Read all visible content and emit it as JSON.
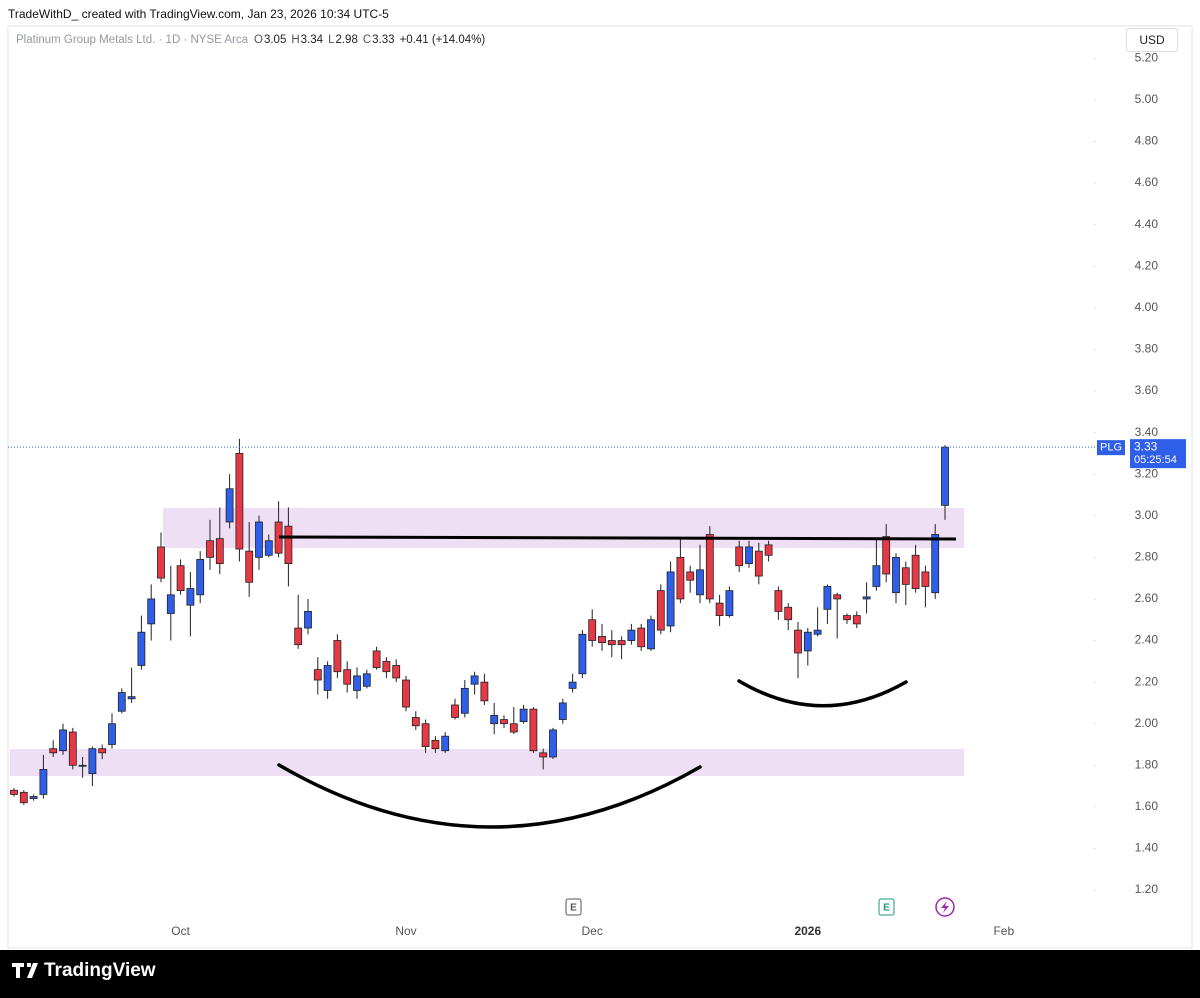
{
  "header": "TradeWithD_ created with TradingView.com, Jan 23, 2026 10:34 UTC-5",
  "footer": "TradingView",
  "chart_data": {
    "type": "candlestick",
    "title": "Platinum Group Metals Ltd. · 1D · NYSE Arca",
    "legend_keys": [
      "O",
      "H",
      "L",
      "C"
    ],
    "change_label": "+0.41 (+14.04%)",
    "currency": "USD",
    "countdown": "05:25:54",
    "events": [
      "E",
      "E"
    ],
    "up_color": "#2f5fe8",
    "down_color": "#e53946",
    "grid": false,
    "categories": [
      null,
      null,
      null,
      null,
      null,
      null,
      null,
      null,
      null,
      null,
      null,
      null,
      null,
      null,
      null,
      null,
      null,
      "Oct",
      null,
      null,
      null,
      null,
      null,
      null,
      null,
      null,
      null,
      null,
      null,
      null,
      null,
      null,
      null,
      null,
      null,
      null,
      null,
      null,
      null,
      null,
      "Nov",
      null,
      null,
      null,
      null,
      null,
      null,
      null,
      null,
      null,
      null,
      null,
      null,
      null,
      null,
      null,
      null,
      null,
      null,
      "Dec",
      null,
      null,
      null,
      null,
      null,
      null,
      null,
      null,
      null,
      null,
      null,
      null,
      null,
      null,
      null,
      null,
      null,
      null,
      null,
      null,
      null,
      "2026",
      null,
      null,
      null,
      null,
      null,
      null,
      null,
      null,
      null,
      null,
      null,
      null,
      null,
      null,
      null,
      null,
      null,
      null,
      null,
      "Feb"
    ],
    "series": [
      {
        "name": "PLG",
        "open": [
          1.68,
          1.67,
          1.64,
          1.66,
          1.88,
          1.87,
          1.96,
          1.8,
          1.76,
          1.88,
          1.9,
          2.06,
          2.12,
          2.28,
          2.48,
          2.85,
          2.53,
          2.76,
          2.57,
          2.62,
          2.88,
          2.89,
          2.97,
          3.3,
          2.83,
          2.8,
          2.81,
          2.97,
          2.95,
          2.46,
          2.46,
          2.26,
          2.16,
          2.4,
          2.26,
          2.16,
          2.18,
          2.35,
          2.3,
          2.28,
          2.21,
          2.03,
          2.0,
          1.92,
          1.87,
          2.09,
          2.05,
          2.19,
          2.2,
          2.0,
          2.02,
          2.0,
          2.01,
          2.07,
          1.86,
          1.84,
          2.02,
          2.17,
          2.24,
          2.5,
          2.42,
          2.4,
          2.4,
          2.4,
          2.46,
          2.36,
          2.64,
          2.47,
          2.8,
          2.73,
          2.62,
          2.91,
          2.58,
          2.52,
          2.85,
          2.77,
          2.83,
          2.86,
          2.64,
          2.56,
          2.45,
          2.35,
          2.43,
          2.55,
          2.62,
          2.52,
          2.52,
          2.6,
          2.66,
          2.9,
          2.63,
          2.75,
          2.81,
          2.73,
          2.63,
          3.05,
          null,
          null,
          null,
          null,
          null,
          null
        ],
        "high": [
          1.69,
          1.68,
          1.66,
          1.85,
          1.92,
          2.0,
          1.98,
          1.84,
          1.89,
          1.9,
          2.05,
          2.17,
          2.27,
          2.52,
          2.67,
          2.92,
          2.76,
          2.79,
          2.73,
          2.83,
          2.98,
          3.04,
          3.2,
          3.37,
          2.97,
          3.0,
          2.91,
          3.07,
          3.04,
          2.62,
          2.6,
          2.32,
          2.3,
          2.43,
          2.3,
          2.27,
          2.26,
          2.37,
          2.32,
          2.31,
          2.23,
          2.06,
          2.02,
          1.94,
          1.96,
          2.12,
          2.21,
          2.25,
          2.24,
          2.1,
          2.04,
          2.08,
          2.09,
          2.08,
          1.88,
          1.98,
          2.12,
          2.24,
          2.45,
          2.55,
          2.48,
          2.45,
          2.42,
          2.48,
          2.48,
          2.52,
          2.67,
          2.78,
          2.89,
          2.76,
          2.86,
          2.95,
          2.62,
          2.66,
          2.88,
          2.88,
          2.87,
          2.88,
          2.66,
          2.58,
          2.49,
          2.46,
          2.56,
          2.67,
          2.63,
          2.53,
          2.54,
          2.68,
          2.89,
          2.96,
          2.82,
          2.78,
          2.86,
          2.76,
          2.96,
          3.34,
          null,
          null,
          null,
          null,
          null,
          null
        ],
        "low": [
          1.65,
          1.61,
          1.63,
          1.64,
          1.84,
          1.85,
          1.78,
          1.74,
          1.7,
          1.83,
          1.88,
          2.05,
          2.1,
          2.26,
          2.4,
          2.68,
          2.4,
          2.62,
          2.42,
          2.58,
          2.74,
          2.72,
          2.94,
          2.78,
          2.61,
          2.74,
          2.8,
          2.8,
          2.66,
          2.36,
          2.43,
          2.14,
          2.12,
          2.22,
          2.15,
          2.12,
          2.17,
          2.26,
          2.22,
          2.2,
          2.06,
          1.97,
          1.86,
          1.86,
          1.86,
          2.02,
          2.03,
          2.14,
          2.09,
          1.95,
          1.98,
          1.95,
          2.0,
          1.86,
          1.78,
          1.83,
          2.0,
          2.15,
          2.22,
          2.37,
          2.35,
          2.32,
          2.31,
          2.38,
          2.35,
          2.35,
          2.43,
          2.44,
          2.58,
          2.63,
          2.58,
          2.58,
          2.47,
          2.51,
          2.73,
          2.75,
          2.67,
          2.78,
          2.5,
          2.45,
          2.22,
          2.28,
          2.42,
          2.48,
          2.41,
          2.48,
          2.46,
          2.53,
          2.64,
          2.68,
          2.58,
          2.57,
          2.63,
          2.56,
          2.6,
          2.98,
          null,
          null,
          null,
          null,
          null,
          null
        ],
        "close": [
          1.66,
          1.62,
          1.65,
          1.78,
          1.86,
          1.97,
          1.8,
          1.8,
          1.88,
          1.86,
          2.0,
          2.15,
          2.13,
          2.44,
          2.6,
          2.7,
          2.62,
          2.64,
          2.65,
          2.79,
          2.8,
          2.77,
          3.13,
          2.84,
          2.68,
          2.97,
          2.88,
          2.82,
          2.77,
          2.38,
          2.54,
          2.21,
          2.28,
          2.25,
          2.19,
          2.23,
          2.24,
          2.27,
          2.25,
          2.22,
          2.08,
          1.99,
          1.89,
          1.88,
          1.94,
          2.03,
          2.17,
          2.23,
          2.11,
          2.04,
          2.0,
          1.96,
          2.07,
          1.87,
          1.84,
          1.97,
          2.1,
          2.2,
          2.43,
          2.4,
          2.39,
          2.38,
          2.38,
          2.45,
          2.37,
          2.5,
          2.45,
          2.73,
          2.6,
          2.69,
          2.74,
          2.6,
          2.52,
          2.64,
          2.76,
          2.85,
          2.71,
          2.81,
          2.54,
          2.5,
          2.34,
          2.44,
          2.45,
          2.66,
          2.6,
          2.5,
          2.48,
          2.61,
          2.76,
          2.72,
          2.8,
          2.67,
          2.65,
          2.66,
          2.91,
          3.33,
          null,
          null,
          null,
          null,
          null,
          null
        ]
      }
    ],
    "ylim": [
      1.08,
      5.24
    ],
    "yticks": [
      {
        "value": 1.2,
        "label": "1.20"
      },
      {
        "value": 1.4,
        "label": "1.40"
      },
      {
        "value": 1.6,
        "label": "1.60"
      },
      {
        "value": 1.8,
        "label": "1.80"
      },
      {
        "value": 2.0,
        "label": "2.00"
      },
      {
        "value": 2.2,
        "label": "2.20"
      },
      {
        "value": 2.4,
        "label": "2.40"
      },
      {
        "value": 2.6,
        "label": "2.60"
      },
      {
        "value": 2.8,
        "label": "2.80"
      },
      {
        "value": 3.0,
        "label": "3.00"
      },
      {
        "value": 3.2,
        "label": "3.20"
      },
      {
        "value": 3.4,
        "label": "3.40"
      },
      {
        "value": 3.6,
        "label": "3.60"
      },
      {
        "value": 3.8,
        "label": "3.80"
      },
      {
        "value": 4.0,
        "label": "4.00"
      },
      {
        "value": 4.2,
        "label": "4.20"
      },
      {
        "value": 4.4,
        "label": "4.40"
      },
      {
        "value": 4.6,
        "label": "4.60"
      },
      {
        "value": 4.8,
        "label": "4.80"
      },
      {
        "value": 5.0,
        "label": "5.00"
      },
      {
        "value": 5.2,
        "label": "5.20"
      }
    ]
  }
}
